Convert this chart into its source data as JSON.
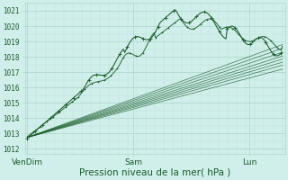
{
  "bg_color": "#d0eeea",
  "grid_major_color": "#b0d8d0",
  "grid_minor_color": "#c0e4de",
  "line_color": "#1a5c2a",
  "ylabel_values": [
    1012,
    1013,
    1014,
    1015,
    1016,
    1017,
    1018,
    1019,
    1020,
    1021
  ],
  "ylim": [
    1011.7,
    1021.5
  ],
  "xlabel": "Pression niveau de la mer( hPa )",
  "xtick_labels": [
    "VenDim",
    "Sam",
    "Lun"
  ],
  "xtick_positions": [
    0.0,
    0.415,
    0.87
  ],
  "xlabel_fontsize": 7.5,
  "ytick_fontsize": 5.5,
  "xtick_fontsize": 6.5
}
